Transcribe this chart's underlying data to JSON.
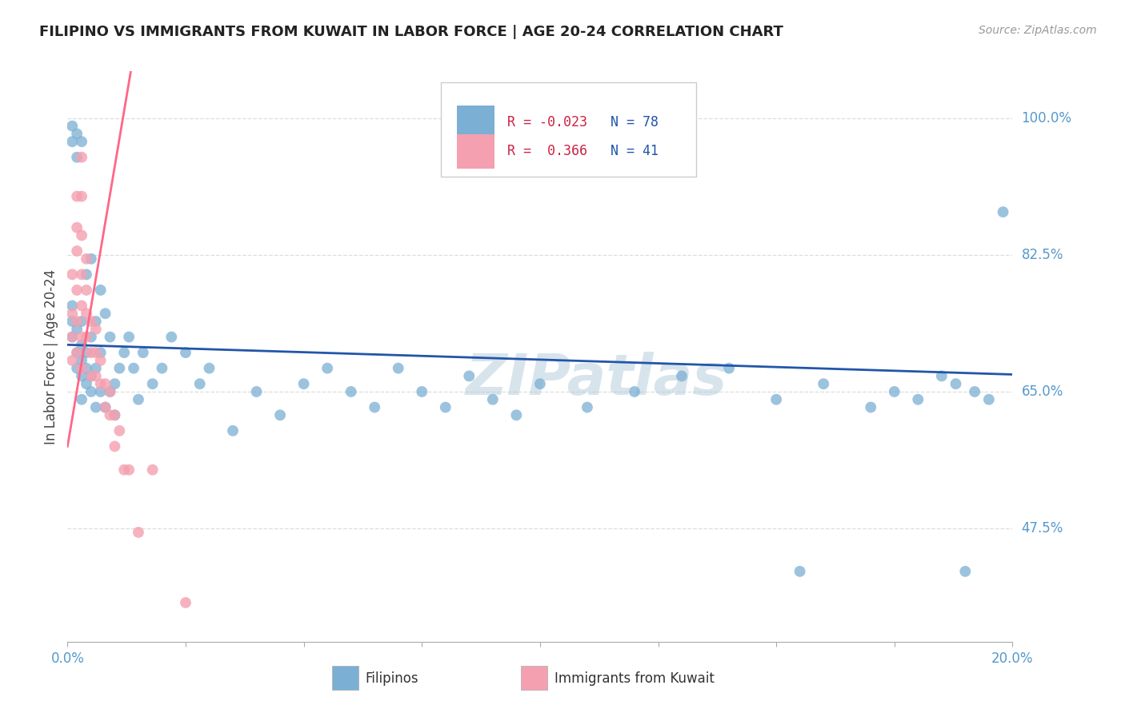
{
  "title": "FILIPINO VS IMMIGRANTS FROM KUWAIT IN LABOR FORCE | AGE 20-24 CORRELATION CHART",
  "source": "Source: ZipAtlas.com",
  "ylabel": "In Labor Force | Age 20-24",
  "xlim": [
    0.0,
    0.2
  ],
  "ylim": [
    0.33,
    1.06
  ],
  "yticks": [
    0.475,
    0.65,
    0.825,
    1.0
  ],
  "ytick_labels": [
    "47.5%",
    "65.0%",
    "82.5%",
    "100.0%"
  ],
  "xtick_labels_show": [
    "0.0%",
    "20.0%"
  ],
  "filipino_R": "-0.023",
  "filipino_N": "78",
  "kuwait_R": "0.366",
  "kuwait_N": "41",
  "filipino_color": "#7BAFD4",
  "kuwait_color": "#F4A0B0",
  "trendline_filipino_color": "#2255AA",
  "trendline_kuwait_color": "#FF6688",
  "watermark": "ZIPatlas",
  "watermark_color": "#B8CEDE",
  "grid_color": "#DDDDDD",
  "axis_color": "#AAAAAA",
  "tick_label_color": "#5599CC",
  "legend_text_color": "#333333",
  "title_color": "#222222",
  "source_color": "#999999",
  "ylabel_color": "#444444",
  "fil_trendline_x0": 0.0,
  "fil_trendline_x1": 0.2,
  "fil_trendline_y0": 0.71,
  "fil_trendline_y1": 0.672,
  "kuw_trendline_x0": 0.0,
  "kuw_trendline_x1": 0.012,
  "kuw_trendline_y0": 0.58,
  "kuw_trendline_y1": 1.01,
  "fil_x": [
    0.001,
    0.001,
    0.001,
    0.001,
    0.001,
    0.002,
    0.002,
    0.002,
    0.002,
    0.002,
    0.003,
    0.003,
    0.003,
    0.003,
    0.003,
    0.003,
    0.004,
    0.004,
    0.004,
    0.004,
    0.005,
    0.005,
    0.005,
    0.005,
    0.006,
    0.006,
    0.006,
    0.007,
    0.007,
    0.007,
    0.008,
    0.008,
    0.009,
    0.009,
    0.01,
    0.01,
    0.011,
    0.012,
    0.013,
    0.014,
    0.015,
    0.016,
    0.018,
    0.02,
    0.022,
    0.025,
    0.028,
    0.03,
    0.035,
    0.04,
    0.045,
    0.05,
    0.055,
    0.06,
    0.065,
    0.07,
    0.075,
    0.08,
    0.085,
    0.09,
    0.095,
    0.1,
    0.11,
    0.12,
    0.13,
    0.14,
    0.15,
    0.155,
    0.16,
    0.17,
    0.175,
    0.18,
    0.185,
    0.188,
    0.19,
    0.192,
    0.195,
    0.198
  ],
  "fil_y": [
    0.72,
    0.74,
    0.76,
    0.97,
    0.99,
    0.68,
    0.7,
    0.73,
    0.95,
    0.98,
    0.64,
    0.67,
    0.69,
    0.71,
    0.74,
    0.97,
    0.66,
    0.68,
    0.7,
    0.8,
    0.65,
    0.67,
    0.72,
    0.82,
    0.63,
    0.68,
    0.74,
    0.65,
    0.7,
    0.78,
    0.63,
    0.75,
    0.65,
    0.72,
    0.62,
    0.66,
    0.68,
    0.7,
    0.72,
    0.68,
    0.64,
    0.7,
    0.66,
    0.68,
    0.72,
    0.7,
    0.66,
    0.68,
    0.6,
    0.65,
    0.62,
    0.66,
    0.68,
    0.65,
    0.63,
    0.68,
    0.65,
    0.63,
    0.67,
    0.64,
    0.62,
    0.66,
    0.63,
    0.65,
    0.67,
    0.68,
    0.64,
    0.42,
    0.66,
    0.63,
    0.65,
    0.64,
    0.67,
    0.66,
    0.42,
    0.65,
    0.64,
    0.88
  ],
  "kuw_x": [
    0.001,
    0.001,
    0.001,
    0.001,
    0.002,
    0.002,
    0.002,
    0.002,
    0.002,
    0.002,
    0.003,
    0.003,
    0.003,
    0.003,
    0.003,
    0.003,
    0.003,
    0.004,
    0.004,
    0.004,
    0.004,
    0.005,
    0.005,
    0.005,
    0.006,
    0.006,
    0.006,
    0.007,
    0.007,
    0.008,
    0.008,
    0.009,
    0.009,
    0.01,
    0.01,
    0.011,
    0.012,
    0.013,
    0.015,
    0.018,
    0.025
  ],
  "kuw_y": [
    0.69,
    0.72,
    0.75,
    0.8,
    0.7,
    0.74,
    0.78,
    0.83,
    0.86,
    0.9,
    0.68,
    0.72,
    0.76,
    0.8,
    0.85,
    0.9,
    0.95,
    0.72,
    0.75,
    0.78,
    0.82,
    0.67,
    0.7,
    0.74,
    0.67,
    0.7,
    0.73,
    0.66,
    0.69,
    0.63,
    0.66,
    0.62,
    0.65,
    0.58,
    0.62,
    0.6,
    0.55,
    0.55,
    0.47,
    0.55,
    0.38
  ]
}
